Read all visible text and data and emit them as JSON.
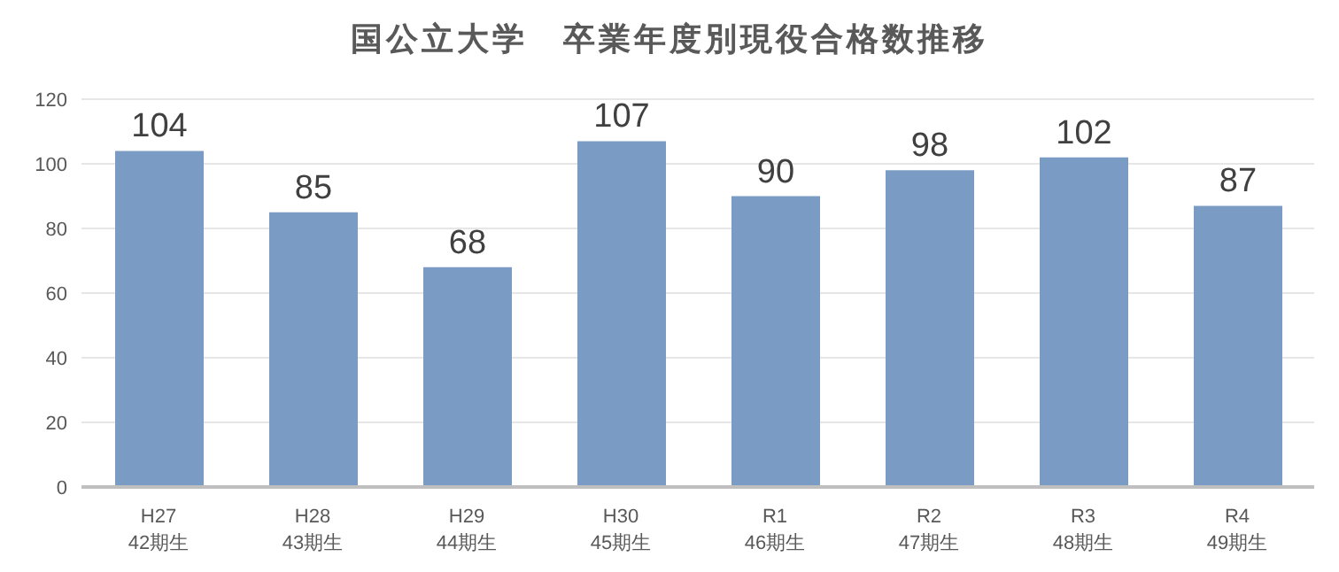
{
  "chart_data": {
    "type": "bar",
    "title": "国公立大学　卒業年度別現役合格数推移",
    "categories": [
      "H27\n42期生",
      "H28\n43期生",
      "H29\n44期生",
      "H30\n45期生",
      "R1\n46期生",
      "R2\n47期生",
      "R3\n48期生",
      "R4\n49期生"
    ],
    "values": [
      104,
      85,
      68,
      107,
      90,
      98,
      102,
      87
    ],
    "color": "#7a9cc4",
    "ylim": [
      0,
      120
    ],
    "yticks": [
      0,
      20,
      40,
      60,
      80,
      100,
      120
    ],
    "grid": "y",
    "data_labels": true
  }
}
